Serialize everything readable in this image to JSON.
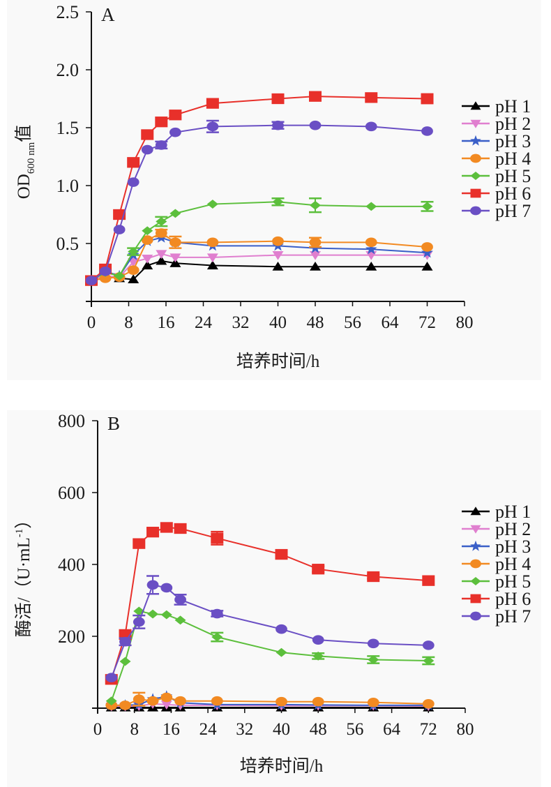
{
  "colors": {
    "pH 1": "#000000",
    "pH 2": "#e07fcf",
    "pH 3": "#3a5fc8",
    "pH 4": "#f28a22",
    "pH 5": "#5cbf3c",
    "pH 6": "#e8302a",
    "pH 7": "#6a4fc4"
  },
  "markers": {
    "pH 1": "triangle-up",
    "pH 2": "triangle-down",
    "pH 3": "star",
    "pH 4": "circle",
    "pH 5": "diamond",
    "pH 6": "square",
    "pH 7": "circle"
  },
  "chart_data": [
    {
      "type": "line",
      "panel_label": "A",
      "title": "",
      "xlabel": "培养时间/h",
      "ylabel": {
        "main": "OD",
        "sub": "600 nm",
        "suffix": "值"
      },
      "xlim": [
        0,
        80
      ],
      "ylim": [
        0,
        2.5
      ],
      "xticks": [
        "0",
        "8",
        "16",
        "24",
        "32",
        "40",
        "48",
        "56",
        "64",
        "72",
        "80"
      ],
      "yticks": [
        "0.5",
        "1.0",
        "1.5",
        "2.0",
        "2.5"
      ],
      "ytick_values": [
        0.5,
        1.0,
        1.5,
        2.0,
        2.5
      ],
      "xtick_values": [
        0,
        8,
        16,
        24,
        32,
        40,
        48,
        56,
        64,
        72,
        80
      ],
      "grid": false,
      "legend_position": "right",
      "x": [
        0,
        3,
        6,
        9,
        12,
        15,
        18,
        26,
        40,
        48,
        60,
        72
      ],
      "series": [
        {
          "name": "pH 1",
          "values": [
            0.18,
            0.22,
            0.2,
            0.19,
            0.31,
            0.35,
            0.33,
            0.31,
            0.3,
            0.3,
            0.3,
            0.3
          ],
          "err": [
            0,
            0,
            0,
            0,
            0,
            0,
            0,
            0,
            0,
            0,
            0,
            0
          ]
        },
        {
          "name": "pH 2",
          "values": [
            0.18,
            0.22,
            0.21,
            0.34,
            0.37,
            0.41,
            0.38,
            0.38,
            0.4,
            0.4,
            0.4,
            0.4
          ],
          "err": [
            0,
            0,
            0,
            0,
            0,
            0,
            0,
            0,
            0,
            0,
            0,
            0
          ]
        },
        {
          "name": "pH 3",
          "values": [
            0.18,
            0.26,
            0.22,
            0.4,
            0.52,
            0.55,
            0.51,
            0.48,
            0.48,
            0.46,
            0.45,
            0.42
          ],
          "err": [
            0,
            0,
            0,
            0,
            0,
            0,
            0,
            0,
            0,
            0,
            0,
            0
          ]
        },
        {
          "name": "pH 4",
          "values": [
            0.18,
            0.2,
            0.21,
            0.27,
            0.53,
            0.59,
            0.51,
            0.51,
            0.52,
            0.51,
            0.51,
            0.47
          ],
          "err": [
            0,
            0,
            0,
            0,
            0,
            0.03,
            0.05,
            0,
            0,
            0.04,
            0,
            0
          ]
        },
        {
          "name": "pH 5",
          "values": [
            0.18,
            0.25,
            0.22,
            0.43,
            0.61,
            0.69,
            0.76,
            0.84,
            0.86,
            0.83,
            0.82,
            0.82
          ],
          "err": [
            0,
            0,
            0,
            0.03,
            0,
            0.04,
            0,
            0,
            0.03,
            0.06,
            0,
            0.04
          ]
        },
        {
          "name": "pH 6",
          "values": [
            0.18,
            0.28,
            0.75,
            1.2,
            1.44,
            1.55,
            1.61,
            1.71,
            1.75,
            1.77,
            1.76,
            1.75
          ],
          "err": [
            0,
            0,
            0,
            0,
            0,
            0,
            0,
            0,
            0.03,
            0,
            0,
            0.04
          ]
        },
        {
          "name": "pH 7",
          "values": [
            0.18,
            0.26,
            0.62,
            1.03,
            1.31,
            1.35,
            1.46,
            1.51,
            1.52,
            1.52,
            1.51,
            1.47
          ],
          "err": [
            0,
            0,
            0,
            0,
            0,
            0.03,
            0,
            0.05,
            0.03,
            0,
            0,
            0
          ]
        }
      ]
    },
    {
      "type": "line",
      "panel_label": "B",
      "title": "",
      "xlabel": "培养时间/h",
      "ylabel": {
        "main": "酶活/（U·mL",
        "sup": "-1",
        "suffix": "）"
      },
      "xlim": [
        0,
        80
      ],
      "ylim": [
        0,
        800
      ],
      "xticks": [
        "0",
        "8",
        "16",
        "24",
        "32",
        "40",
        "48",
        "56",
        "64",
        "72",
        "80"
      ],
      "yticks": [
        "200",
        "400",
        "600",
        "800"
      ],
      "ytick_values": [
        200,
        400,
        600,
        800
      ],
      "xtick_values": [
        0,
        8,
        16,
        24,
        32,
        40,
        48,
        56,
        64,
        72,
        80
      ],
      "grid": false,
      "legend_position": "right",
      "x": [
        3,
        6,
        9,
        12,
        15,
        18,
        26,
        40,
        48,
        60,
        72
      ],
      "series": [
        {
          "name": "pH 1",
          "values": [
            2,
            2,
            2,
            2,
            2,
            2,
            2,
            2,
            2,
            2,
            2
          ],
          "err": [
            0,
            0,
            0,
            0,
            0,
            0,
            0,
            0,
            0,
            0,
            0
          ]
        },
        {
          "name": "pH 2",
          "values": [
            5,
            5,
            6,
            12,
            10,
            8,
            8,
            7,
            7,
            7,
            6
          ],
          "err": [
            0,
            0,
            0,
            0,
            0,
            0,
            0,
            0,
            0,
            0,
            0
          ]
        },
        {
          "name": "pH 3",
          "values": [
            8,
            8,
            10,
            25,
            33,
            15,
            10,
            10,
            9,
            8,
            8
          ],
          "err": [
            0,
            0,
            0,
            0,
            0,
            0,
            0,
            0,
            0,
            0,
            0
          ]
        },
        {
          "name": "pH 4",
          "values": [
            8,
            8,
            25,
            20,
            30,
            20,
            20,
            18,
            18,
            16,
            12
          ],
          "err": [
            0,
            0,
            18,
            0,
            0,
            0,
            0,
            0,
            0,
            0,
            0
          ]
        },
        {
          "name": "pH 5",
          "values": [
            20,
            130,
            270,
            262,
            260,
            245,
            198,
            155,
            145,
            135,
            132
          ],
          "err": [
            0,
            0,
            0,
            0,
            0,
            0,
            12,
            0,
            8,
            10,
            10
          ]
        },
        {
          "name": "pH 6",
          "values": [
            80,
            205,
            458,
            490,
            503,
            500,
            473,
            428,
            387,
            366,
            355
          ],
          "err": [
            0,
            0,
            0,
            10,
            0,
            0,
            18,
            0,
            8,
            6,
            0
          ]
        },
        {
          "name": "pH 7",
          "values": [
            85,
            185,
            240,
            343,
            335,
            302,
            263,
            220,
            190,
            180,
            175
          ],
          "err": [
            0,
            10,
            18,
            25,
            0,
            14,
            8,
            0,
            0,
            0,
            0
          ]
        }
      ]
    }
  ]
}
